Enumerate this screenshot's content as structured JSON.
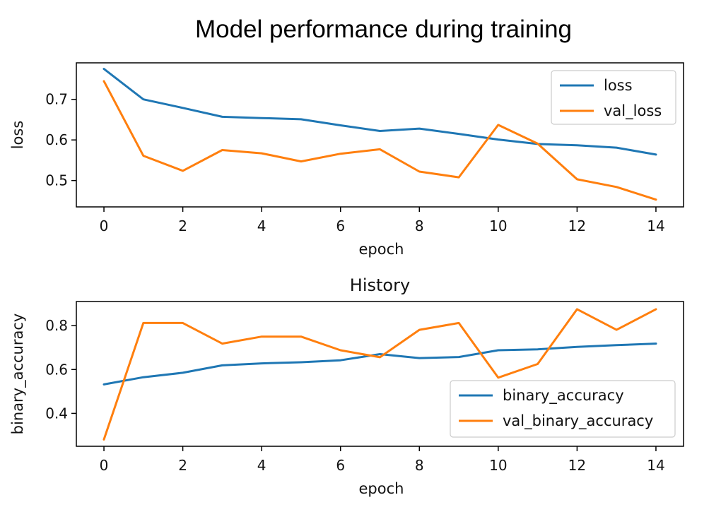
{
  "figure": {
    "title": "Model performance during training"
  },
  "colors": {
    "series_1": "#1f77b4",
    "series_2": "#ff7f0e"
  },
  "chart_data": [
    {
      "type": "line",
      "title": "",
      "xlabel": "epoch",
      "ylabel": "loss",
      "xlim": [
        -0.7,
        14.7
      ],
      "ylim": [
        0.435,
        0.79
      ],
      "xticks": [
        0,
        2,
        4,
        6,
        8,
        10,
        12,
        14
      ],
      "yticks": [
        0.5,
        0.6,
        0.7
      ],
      "ytick_labels": [
        "0.5",
        "0.6",
        "0.7"
      ],
      "legend_position": "top-right",
      "x": [
        0,
        1,
        2,
        3,
        4,
        5,
        6,
        7,
        8,
        9,
        10,
        11,
        12,
        13,
        14
      ],
      "series": [
        {
          "name": "loss",
          "values": [
            0.775,
            0.7,
            0.679,
            0.657,
            0.654,
            0.651,
            0.636,
            0.622,
            0.628,
            0.615,
            0.601,
            0.59,
            0.587,
            0.581,
            0.564
          ]
        },
        {
          "name": "val_loss",
          "values": [
            0.745,
            0.561,
            0.524,
            0.575,
            0.567,
            0.547,
            0.566,
            0.577,
            0.522,
            0.508,
            0.637,
            0.591,
            0.503,
            0.484,
            0.453
          ]
        }
      ]
    },
    {
      "type": "line",
      "title": "History",
      "xlabel": "epoch",
      "ylabel": "binary_accuracy",
      "xlim": [
        -0.7,
        14.7
      ],
      "ylim": [
        0.25,
        0.91
      ],
      "xticks": [
        0,
        2,
        4,
        6,
        8,
        10,
        12,
        14
      ],
      "yticks": [
        0.4,
        0.6,
        0.8
      ],
      "ytick_labels": [
        "0.4",
        "0.6",
        "0.8"
      ],
      "legend_position": "lower-right",
      "x": [
        0,
        1,
        2,
        3,
        4,
        5,
        6,
        7,
        8,
        9,
        10,
        11,
        12,
        13,
        14
      ],
      "series": [
        {
          "name": "binary_accuracy",
          "values": [
            0.532,
            0.565,
            0.585,
            0.619,
            0.628,
            0.633,
            0.642,
            0.67,
            0.652,
            0.657,
            0.688,
            0.692,
            0.703,
            0.711,
            0.718
          ]
        },
        {
          "name": "val_binary_accuracy",
          "values": [
            0.281,
            0.812,
            0.812,
            0.718,
            0.75,
            0.75,
            0.688,
            0.656,
            0.781,
            0.812,
            0.563,
            0.625,
            0.875,
            0.781,
            0.875
          ]
        }
      ]
    }
  ]
}
